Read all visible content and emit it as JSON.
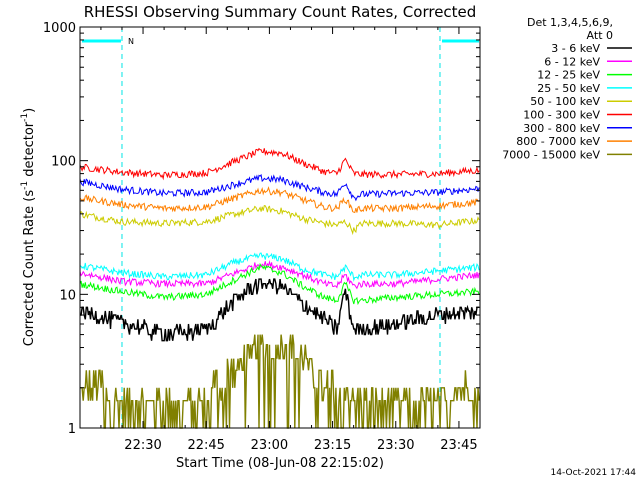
{
  "chart_data": {
    "type": "line",
    "title": "RHESSI Observing Summary Count Rates, Corrected",
    "xlabel": "Start Time (08-Jun-08 22:15:02)",
    "ylabel_main": "Corrected Count Rate (s",
    "ylabel_sup1": "-1",
    "ylabel_mid": " detector",
    "ylabel_sup2": "-1",
    "ylabel_end": ")",
    "yscale": "log",
    "ylim": [
      1,
      1000
    ],
    "xlim": [
      "22:15:02",
      "23:50:00"
    ],
    "x_ticks": [
      "22:30",
      "22:45",
      "23:00",
      "23:15",
      "23:30",
      "23:45"
    ],
    "y_ticks": [
      "1",
      "10",
      "100",
      "1000"
    ],
    "legend_header": [
      "Det 1,3,4,5,6,9,",
      "Att 0"
    ],
    "legend_position": "right",
    "marker_label": "N",
    "night_intervals": [
      [
        "22:15:02",
        "22:25:00"
      ],
      [
        "23:40:30",
        "23:50:00"
      ]
    ],
    "x_times": [
      "22:15",
      "22:25",
      "22:35",
      "22:45",
      "22:52",
      "22:58",
      "23:03",
      "23:08",
      "23:13",
      "23:16",
      "23:18",
      "23:20",
      "23:22",
      "23:30",
      "23:40",
      "23:50"
    ],
    "series": [
      {
        "name": "3 - 6 keV",
        "color": "#000000",
        "values": [
          7.5,
          6.2,
          5.0,
          5.5,
          9.0,
          12.5,
          11.5,
          8.5,
          6.5,
          5.5,
          11.0,
          5.5,
          5.5,
          6.0,
          7.0,
          7.5
        ]
      },
      {
        "name": "6 - 12 keV",
        "color": "#ff00ff",
        "values": [
          14.5,
          12.5,
          12.0,
          12.0,
          14.5,
          17.0,
          16.0,
          14.0,
          12.0,
          11.5,
          14.0,
          11.5,
          12.0,
          12.0,
          13.0,
          14.0
        ]
      },
      {
        "name": "12 - 25 keV",
        "color": "#00ff00",
        "values": [
          12.0,
          10.5,
          9.5,
          10.0,
          13.0,
          16.0,
          14.5,
          11.5,
          9.5,
          9.0,
          12.0,
          9.0,
          9.0,
          9.5,
          10.0,
          10.5
        ]
      },
      {
        "name": "25 - 50 keV",
        "color": "#00ffff",
        "values": [
          16.5,
          14.5,
          13.5,
          14.0,
          17.5,
          19.5,
          18.5,
          15.5,
          14.0,
          13.5,
          16.0,
          13.5,
          14.0,
          14.0,
          15.0,
          16.0
        ]
      },
      {
        "name": "50 - 100 keV",
        "color": "#cccc00",
        "values": [
          40,
          35,
          34,
          35,
          40,
          44,
          42,
          37,
          34,
          33,
          35,
          30,
          34,
          34,
          33,
          36
        ]
      },
      {
        "name": "100 - 300 keV",
        "color": "#ff0000",
        "values": [
          90,
          82,
          78,
          81,
          100,
          118,
          114,
          96,
          83,
          80,
          102,
          80,
          79,
          79,
          80,
          85
        ]
      },
      {
        "name": "300 - 800 keV",
        "color": "#0000ff",
        "values": [
          70,
          61,
          57,
          58,
          67,
          74,
          72,
          64,
          58,
          56,
          69,
          53,
          56,
          57,
          58,
          62
        ]
      },
      {
        "name": "800 - 7000 keV",
        "color": "#ff8000",
        "values": [
          53,
          47,
          44,
          45,
          53,
          60,
          58,
          51,
          45,
          44,
          52,
          42,
          44,
          44,
          46,
          49
        ]
      },
      {
        "name": "7000 - 15000 keV",
        "color": "#808000",
        "values": [
          2.2,
          1.6,
          1.4,
          1.6,
          2.8,
          4.2,
          4.6,
          3.3,
          2.0,
          1.7,
          2.0,
          1.5,
          1.6,
          1.6,
          1.7,
          2.0
        ]
      }
    ]
  },
  "footer": {
    "timestamp": "14-Oct-2021 17:44"
  }
}
